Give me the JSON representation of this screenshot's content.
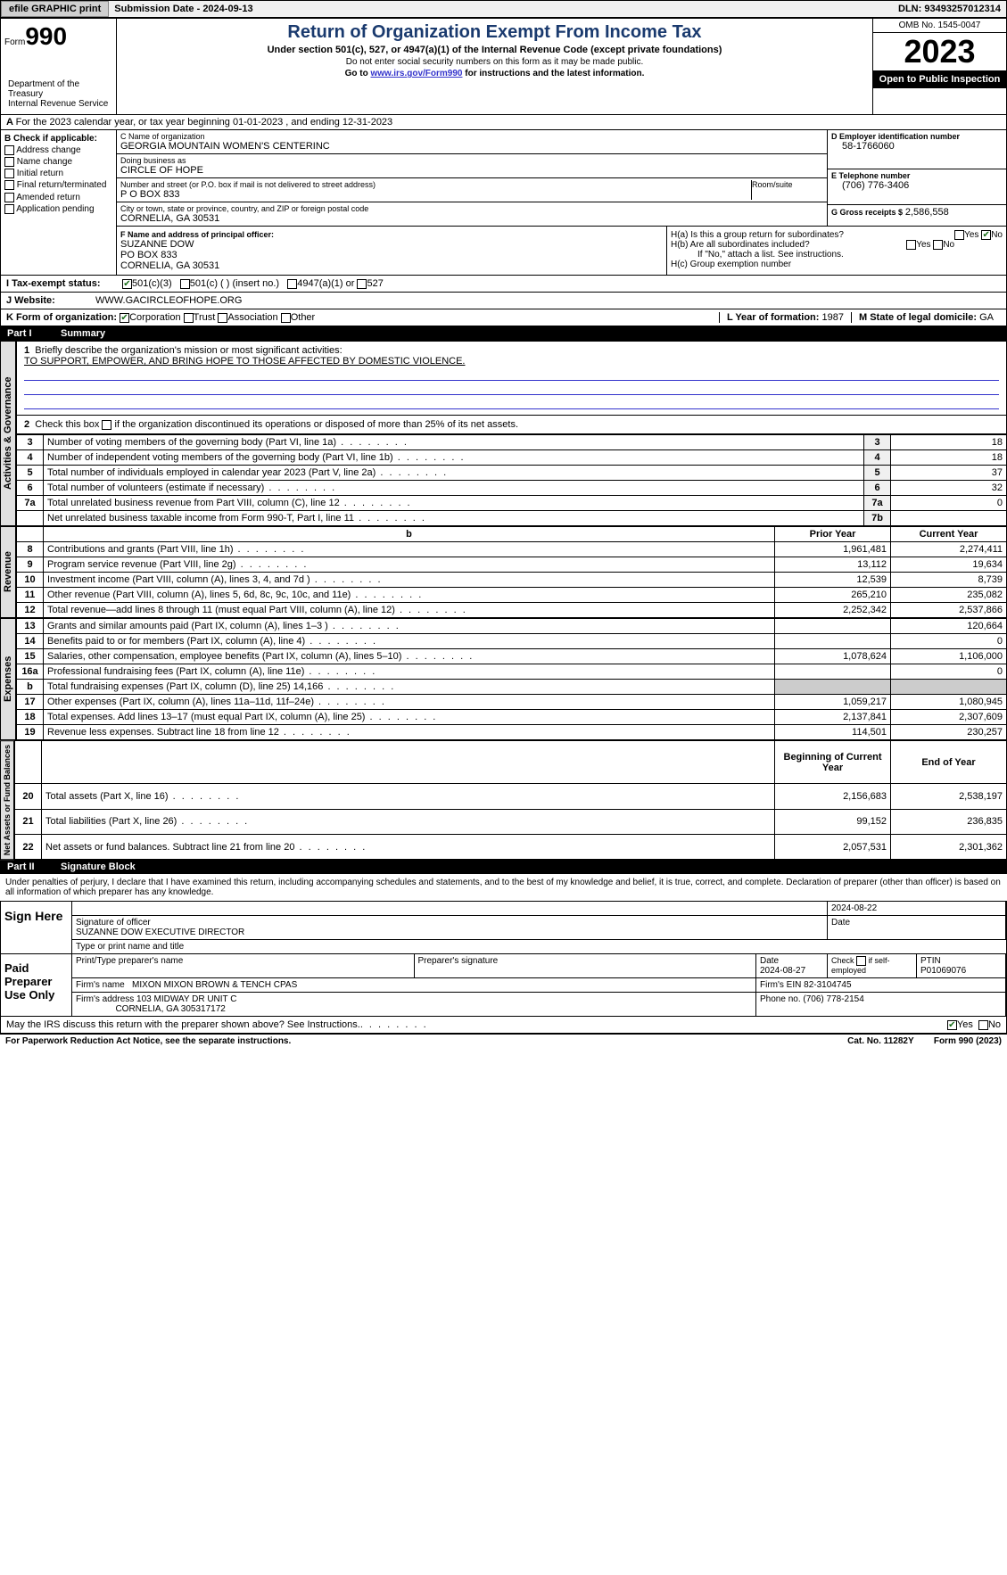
{
  "topbar": {
    "efile": "efile GRAPHIC print",
    "submission": "Submission Date - 2024-09-13",
    "dln": "DLN: 93493257012314"
  },
  "header": {
    "form_word": "Form",
    "form_num": "990",
    "title": "Return of Organization Exempt From Income Tax",
    "subtitle": "Under section 501(c), 527, or 4947(a)(1) of the Internal Revenue Code (except private foundations)",
    "note": "Do not enter social security numbers on this form as it may be made public.",
    "link_pre": "Go to ",
    "link": "www.irs.gov/Form990",
    "link_post": " for instructions and the latest information.",
    "dept": "Department of the Treasury\nInternal Revenue Service",
    "omb": "OMB No. 1545-0047",
    "year": "2023",
    "inspection": "Open to Public Inspection"
  },
  "line_a": "For the 2023 calendar year, or tax year beginning 01-01-2023    , and ending 12-31-2023",
  "box_b": {
    "title": "B Check if applicable:",
    "opts": [
      "Address change",
      "Name change",
      "Initial return",
      "Final return/terminated",
      "Amended return",
      "Application pending"
    ]
  },
  "box_c": {
    "name_lbl": "C Name of organization",
    "name": "GEORGIA MOUNTAIN WOMEN'S CENTERINC",
    "dba_lbl": "Doing business as",
    "dba": "CIRCLE OF HOPE",
    "addr_lbl": "Number and street (or P.O. box if mail is not delivered to street address)",
    "addr": "P O BOX 833",
    "room_lbl": "Room/suite",
    "city_lbl": "City or town, state or province, country, and ZIP or foreign postal code",
    "city": "CORNELIA, GA  30531"
  },
  "box_d": {
    "lbl": "D Employer identification number",
    "val": "58-1766060"
  },
  "box_e": {
    "lbl": "E Telephone number",
    "val": "(706) 776-3406"
  },
  "box_g": {
    "lbl": "G Gross receipts $",
    "val": "2,586,558"
  },
  "box_f": {
    "lbl": "F  Name and address of principal officer:",
    "name": "SUZANNE DOW",
    "addr1": "PO BOX 833",
    "addr2": "CORNELIA, GA  30531"
  },
  "box_h": {
    "a": "H(a)  Is this a group return for subordinates?",
    "b": "H(b)  Are all subordinates included?",
    "b_note": "If \"No,\" attach a list. See instructions.",
    "c": "H(c)  Group exemption number"
  },
  "box_i": {
    "lbl": "I    Tax-exempt status:",
    "opts": [
      "501(c)(3)",
      "501(c) (  ) (insert no.)",
      "4947(a)(1) or",
      "527"
    ]
  },
  "box_j": {
    "lbl": "J    Website:",
    "val": "WWW.GACIRCLEOFHOPE.ORG"
  },
  "box_k": {
    "lbl": "K Form of organization:",
    "opts": [
      "Corporation",
      "Trust",
      "Association",
      "Other"
    ]
  },
  "box_l": {
    "lbl": "L Year of formation:",
    "val": "1987"
  },
  "box_m": {
    "lbl": "M State of legal domicile:",
    "val": "GA"
  },
  "part1": {
    "num": "Part I",
    "title": "Summary"
  },
  "summary": {
    "line1_lbl": "Briefly describe the organization's mission or most significant activities:",
    "line1_val": "TO SUPPORT, EMPOWER, AND BRING HOPE TO THOSE AFFECTED BY DOMESTIC VIOLENCE.",
    "line2": "Check this box      if the organization discontinued its operations or disposed of more than 25% of its net assets.",
    "gov_label": "Activities & Governance",
    "rev_label": "Revenue",
    "exp_label": "Expenses",
    "net_label": "Net Assets or Fund Balances",
    "rows_gov": [
      {
        "n": "3",
        "lbl": "Number of voting members of the governing body (Part VI, line 1a)",
        "ln": "3",
        "v": "18"
      },
      {
        "n": "4",
        "lbl": "Number of independent voting members of the governing body (Part VI, line 1b)",
        "ln": "4",
        "v": "18"
      },
      {
        "n": "5",
        "lbl": "Total number of individuals employed in calendar year 2023 (Part V, line 2a)",
        "ln": "5",
        "v": "37"
      },
      {
        "n": "6",
        "lbl": "Total number of volunteers (estimate if necessary)",
        "ln": "6",
        "v": "32"
      },
      {
        "n": "7a",
        "lbl": "Total unrelated business revenue from Part VIII, column (C), line 12",
        "ln": "7a",
        "v": "0"
      },
      {
        "n": "",
        "lbl": "Net unrelated business taxable income from Form 990-T, Part I, line 11",
        "ln": "7b",
        "v": ""
      }
    ],
    "col_hdr": {
      "b": "b",
      "prior": "Prior Year",
      "current": "Current Year"
    },
    "rows_rev": [
      {
        "n": "8",
        "lbl": "Contributions and grants (Part VIII, line 1h)",
        "p": "1,961,481",
        "c": "2,274,411"
      },
      {
        "n": "9",
        "lbl": "Program service revenue (Part VIII, line 2g)",
        "p": "13,112",
        "c": "19,634"
      },
      {
        "n": "10",
        "lbl": "Investment income (Part VIII, column (A), lines 3, 4, and 7d )",
        "p": "12,539",
        "c": "8,739"
      },
      {
        "n": "11",
        "lbl": "Other revenue (Part VIII, column (A), lines 5, 6d, 8c, 9c, 10c, and 11e)",
        "p": "265,210",
        "c": "235,082"
      },
      {
        "n": "12",
        "lbl": "Total revenue—add lines 8 through 11 (must equal Part VIII, column (A), line 12)",
        "p": "2,252,342",
        "c": "2,537,866"
      }
    ],
    "rows_exp": [
      {
        "n": "13",
        "lbl": "Grants and similar amounts paid (Part IX, column (A), lines 1–3 )",
        "p": "",
        "c": "120,664"
      },
      {
        "n": "14",
        "lbl": "Benefits paid to or for members (Part IX, column (A), line 4)",
        "p": "",
        "c": "0"
      },
      {
        "n": "15",
        "lbl": "Salaries, other compensation, employee benefits (Part IX, column (A), lines 5–10)",
        "p": "1,078,624",
        "c": "1,106,000"
      },
      {
        "n": "16a",
        "lbl": "Professional fundraising fees (Part IX, column (A), line 11e)",
        "p": "",
        "c": "0"
      },
      {
        "n": "b",
        "lbl": "Total fundraising expenses (Part IX, column (D), line 25) 14,166",
        "p": "SHADE",
        "c": "SHADE"
      },
      {
        "n": "17",
        "lbl": "Other expenses (Part IX, column (A), lines 11a–11d, 11f–24e)",
        "p": "1,059,217",
        "c": "1,080,945"
      },
      {
        "n": "18",
        "lbl": "Total expenses. Add lines 13–17 (must equal Part IX, column (A), line 25)",
        "p": "2,137,841",
        "c": "2,307,609"
      },
      {
        "n": "19",
        "lbl": "Revenue less expenses. Subtract line 18 from line 12",
        "p": "114,501",
        "c": "230,257"
      }
    ],
    "net_hdr": {
      "begin": "Beginning of Current Year",
      "end": "End of Year"
    },
    "rows_net": [
      {
        "n": "20",
        "lbl": "Total assets (Part X, line 16)",
        "p": "2,156,683",
        "c": "2,538,197"
      },
      {
        "n": "21",
        "lbl": "Total liabilities (Part X, line 26)",
        "p": "99,152",
        "c": "236,835"
      },
      {
        "n": "22",
        "lbl": "Net assets or fund balances. Subtract line 21 from line 20",
        "p": "2,057,531",
        "c": "2,301,362"
      }
    ]
  },
  "part2": {
    "num": "Part II",
    "title": "Signature Block"
  },
  "sig": {
    "penalty": "Under penalties of perjury, I declare that I have examined this return, including accompanying schedules and statements, and to the best of my knowledge and belief, it is true, correct, and complete. Declaration of preparer (other than officer) is based on all information of which preparer has any knowledge.",
    "sign_here": "Sign Here",
    "officer_date": "2024-08-22",
    "officer_sig_lbl": "Signature of officer",
    "officer_name": "SUZANNE DOW EXECUTIVE DIRECTOR",
    "officer_name_lbl": "Type or print name and title",
    "date_lbl": "Date",
    "paid": "Paid Preparer Use Only",
    "prep_name_lbl": "Print/Type preparer's name",
    "prep_sig_lbl": "Preparer's signature",
    "prep_date": "2024-08-27",
    "prep_check": "Check       if self-employed",
    "ptin_lbl": "PTIN",
    "ptin": "P01069076",
    "firm_name_lbl": "Firm's name",
    "firm_name": "MIXON MIXON BROWN & TENCH CPAS",
    "firm_ein_lbl": "Firm's EIN",
    "firm_ein": "82-3104745",
    "firm_addr_lbl": "Firm's address",
    "firm_addr1": "103 MIDWAY DR UNIT C",
    "firm_addr2": "CORNELIA, GA  305317172",
    "phone_lbl": "Phone no.",
    "phone": "(706) 778-2154",
    "discuss": "May the IRS discuss this return with the preparer shown above? See Instructions."
  },
  "footer": {
    "paperwork": "For Paperwork Reduction Act Notice, see the separate instructions.",
    "cat": "Cat. No. 11282Y",
    "form": "Form 990 (2023)"
  }
}
